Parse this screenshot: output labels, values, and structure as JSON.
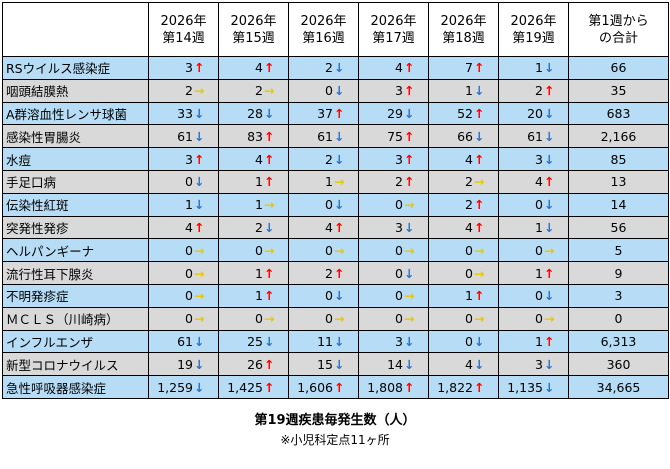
{
  "table": {
    "headers": [
      "2026年\n第14週",
      "2026年\n第15週",
      "2026年\n第16週",
      "2026年\n第17週",
      "2026年\n第18週",
      "2026年\n第19週",
      "第1週から\nの合計"
    ],
    "rows": [
      {
        "name": "RSウイルス感染症",
        "cells": [
          {
            "v": "3",
            "t": "up"
          },
          {
            "v": "4",
            "t": "up"
          },
          {
            "v": "2",
            "t": "down"
          },
          {
            "v": "4",
            "t": "up"
          },
          {
            "v": "7",
            "t": "up"
          },
          {
            "v": "1",
            "t": "down"
          }
        ],
        "total": "66"
      },
      {
        "name": "咽頭結膜熱",
        "cells": [
          {
            "v": "2",
            "t": "flat"
          },
          {
            "v": "2",
            "t": "flat"
          },
          {
            "v": "0",
            "t": "down"
          },
          {
            "v": "3",
            "t": "up"
          },
          {
            "v": "1",
            "t": "down"
          },
          {
            "v": "2",
            "t": "up"
          }
        ],
        "total": "35"
      },
      {
        "name": "A群溶血性レンサ球菌",
        "cells": [
          {
            "v": "33",
            "t": "down"
          },
          {
            "v": "28",
            "t": "down"
          },
          {
            "v": "37",
            "t": "up"
          },
          {
            "v": "29",
            "t": "down"
          },
          {
            "v": "52",
            "t": "up"
          },
          {
            "v": "20",
            "t": "down"
          }
        ],
        "total": "683"
      },
      {
        "name": "感染性胃腸炎",
        "cells": [
          {
            "v": "61",
            "t": "down"
          },
          {
            "v": "83",
            "t": "up"
          },
          {
            "v": "61",
            "t": "down"
          },
          {
            "v": "75",
            "t": "up"
          },
          {
            "v": "66",
            "t": "down"
          },
          {
            "v": "61",
            "t": "down"
          }
        ],
        "total": "2,166"
      },
      {
        "name": "水痘",
        "cells": [
          {
            "v": "3",
            "t": "up"
          },
          {
            "v": "4",
            "t": "up"
          },
          {
            "v": "2",
            "t": "down"
          },
          {
            "v": "3",
            "t": "up"
          },
          {
            "v": "4",
            "t": "up"
          },
          {
            "v": "3",
            "t": "down"
          }
        ],
        "total": "85"
      },
      {
        "name": "手足口病",
        "cells": [
          {
            "v": "0",
            "t": "down"
          },
          {
            "v": "1",
            "t": "up"
          },
          {
            "v": "1",
            "t": "flat"
          },
          {
            "v": "2",
            "t": "up"
          },
          {
            "v": "2",
            "t": "flat"
          },
          {
            "v": "4",
            "t": "up"
          }
        ],
        "total": "13"
      },
      {
        "name": "伝染性紅斑",
        "cells": [
          {
            "v": "1",
            "t": "down"
          },
          {
            "v": "1",
            "t": "flat"
          },
          {
            "v": "0",
            "t": "down"
          },
          {
            "v": "0",
            "t": "flat"
          },
          {
            "v": "2",
            "t": "up"
          },
          {
            "v": "0",
            "t": "down"
          }
        ],
        "total": "14"
      },
      {
        "name": "突発性発疹",
        "cells": [
          {
            "v": "4",
            "t": "up"
          },
          {
            "v": "2",
            "t": "down"
          },
          {
            "v": "4",
            "t": "up"
          },
          {
            "v": "3",
            "t": "down"
          },
          {
            "v": "4",
            "t": "up"
          },
          {
            "v": "1",
            "t": "down"
          }
        ],
        "total": "56"
      },
      {
        "name": "ヘルパンギーナ",
        "cells": [
          {
            "v": "0",
            "t": "flat"
          },
          {
            "v": "0",
            "t": "flat"
          },
          {
            "v": "0",
            "t": "flat"
          },
          {
            "v": "0",
            "t": "flat"
          },
          {
            "v": "0",
            "t": "flat"
          },
          {
            "v": "0",
            "t": "flat"
          }
        ],
        "total": "5"
      },
      {
        "name": "流行性耳下腺炎",
        "cells": [
          {
            "v": "0",
            "t": "flat"
          },
          {
            "v": "1",
            "t": "up"
          },
          {
            "v": "2",
            "t": "up"
          },
          {
            "v": "0",
            "t": "down"
          },
          {
            "v": "0",
            "t": "flat"
          },
          {
            "v": "1",
            "t": "up"
          }
        ],
        "total": "9"
      },
      {
        "name": "不明発疹症",
        "cells": [
          {
            "v": "0",
            "t": "flat"
          },
          {
            "v": "1",
            "t": "up"
          },
          {
            "v": "0",
            "t": "down"
          },
          {
            "v": "0",
            "t": "flat"
          },
          {
            "v": "1",
            "t": "up"
          },
          {
            "v": "0",
            "t": "down"
          }
        ],
        "total": "3"
      },
      {
        "name": "ＭＣＬＳ（川崎病）",
        "cells": [
          {
            "v": "0",
            "t": "flat"
          },
          {
            "v": "0",
            "t": "flat"
          },
          {
            "v": "0",
            "t": "flat"
          },
          {
            "v": "0",
            "t": "flat"
          },
          {
            "v": "0",
            "t": "flat"
          },
          {
            "v": "0",
            "t": "flat"
          }
        ],
        "total": "0"
      },
      {
        "name": "インフルエンザ",
        "cells": [
          {
            "v": "61",
            "t": "down"
          },
          {
            "v": "25",
            "t": "down"
          },
          {
            "v": "11",
            "t": "down"
          },
          {
            "v": "3",
            "t": "down"
          },
          {
            "v": "0",
            "t": "down"
          },
          {
            "v": "1",
            "t": "up"
          }
        ],
        "total": "6,313"
      },
      {
        "name": "新型コロナウイルス",
        "cells": [
          {
            "v": "19",
            "t": "down"
          },
          {
            "v": "26",
            "t": "up"
          },
          {
            "v": "15",
            "t": "down"
          },
          {
            "v": "14",
            "t": "down"
          },
          {
            "v": "4",
            "t": "down"
          },
          {
            "v": "3",
            "t": "down"
          }
        ],
        "total": "360"
      },
      {
        "name": "急性呼吸器感染症",
        "cells": [
          {
            "v": "1,259",
            "t": "down"
          },
          {
            "v": "1,425",
            "t": "up"
          },
          {
            "v": "1,606",
            "t": "up"
          },
          {
            "v": "1,808",
            "t": "up"
          },
          {
            "v": "1,822",
            "t": "up"
          },
          {
            "v": "1,135",
            "t": "down"
          }
        ],
        "total": "34,665"
      }
    ]
  },
  "trend_icons": {
    "up": "↑",
    "down": "↓",
    "flat": "→"
  },
  "trend_icon_names": {
    "up": "arrow-up-icon",
    "down": "arrow-down-icon",
    "flat": "arrow-right-icon"
  },
  "colors": {
    "up": "#ff0000",
    "down": "#2e75c8",
    "flat": "#e8c800",
    "row_odd": "#b7dcf5",
    "row_even": "#d9d9d9"
  },
  "caption": {
    "title": "第19週疾患毎発生数（人）",
    "note": "※小児科定点11ヶ所"
  }
}
